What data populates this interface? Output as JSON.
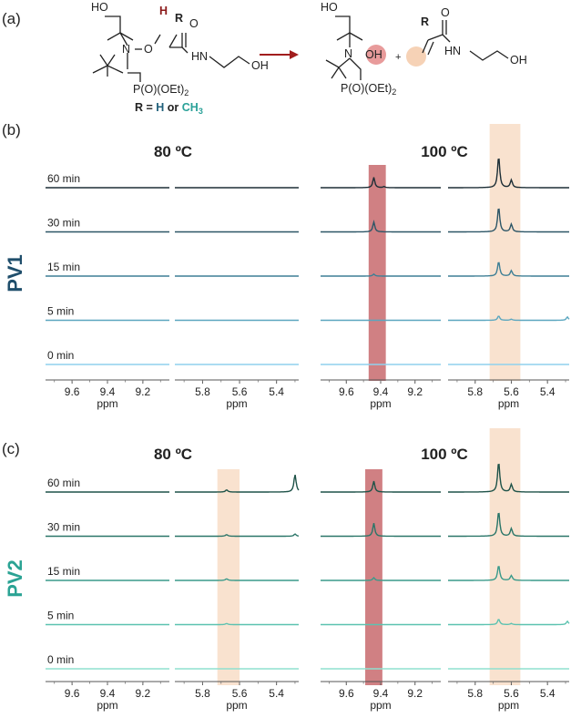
{
  "figure": {
    "panel_a_label": "(a)",
    "panel_b_label": "(b)",
    "panel_c_label": "(c)"
  },
  "scheme": {
    "reactant_labels": [
      "HO",
      "H",
      "R",
      "O",
      "N",
      "O",
      "HN",
      "OH",
      "P(O)(OEt)",
      "2"
    ],
    "r_def_prefix": "R = ",
    "r_def_h": "H",
    "r_def_or": " or ",
    "r_def_ch3": "CH",
    "r_def_ch3_sub": "3",
    "product_labels": [
      "HO",
      "N",
      "OH",
      "P(O)(OEt)",
      "2",
      "+",
      "R",
      "O",
      "HN",
      "OH"
    ],
    "colors": {
      "ink": "#222222",
      "highlight_h": "#8b1a1a",
      "arrow": "#a11d1d",
      "ch3": "#2aa198",
      "h_blue": "#1f5f7a",
      "red_circle": "#e07a7a",
      "peach_circle": "#f6d2b6"
    }
  },
  "chart_data": [
    {
      "type": "line",
      "panel": "(b)",
      "polymer_label": "PV1",
      "polymer_color": "#1f4e6b",
      "x_unit": "ppm",
      "x_ticks_left": [
        "9.6",
        "9.4",
        "9.2"
      ],
      "x_ticks_right": [
        "5.8",
        "5.6",
        "5.4"
      ],
      "xlim_left": [
        9.75,
        9.05
      ],
      "xlim_right": [
        5.95,
        5.28
      ],
      "series": [
        {
          "name": "0 min",
          "color": "#8fd1ee"
        },
        {
          "name": "5 min",
          "color": "#5aa6bf"
        },
        {
          "name": "15 min",
          "color": "#3f7f95"
        },
        {
          "name": "30 min",
          "color": "#2c5566"
        },
        {
          "name": "60 min",
          "color": "#1d2e36"
        }
      ],
      "temperatures": [
        {
          "label": "80 ºC",
          "peaks": [],
          "highlights": []
        },
        {
          "label": "100 ºC",
          "peaks": [
            {
              "ppm": 9.44,
              "heights": [
                0.0,
                0.0,
                0.18,
                0.9,
                0.95
              ]
            },
            {
              "ppm": 9.38,
              "heights": [
                0.0,
                0.0,
                0.0,
                0.0,
                0.1
              ]
            },
            {
              "ppm": 5.67,
              "heights": [
                0.0,
                0.4,
                1.35,
                2.3,
                2.9
              ]
            },
            {
              "ppm": 5.6,
              "heights": [
                0.0,
                0.1,
                0.5,
                0.7,
                0.7
              ]
            },
            {
              "ppm": 5.29,
              "heights": [
                0.0,
                0.3,
                0.0,
                0.0,
                0.0
              ]
            }
          ],
          "highlights": [
            {
              "from": 9.47,
              "to": 9.37,
              "color": "#c0555a"
            },
            {
              "from": 5.72,
              "to": 5.55,
              "color": "#f6d2b6"
            }
          ]
        }
      ]
    },
    {
      "type": "line",
      "panel": "(c)",
      "polymer_label": "PV2",
      "polymer_color": "#2ba394",
      "x_unit": "ppm",
      "x_ticks_left": [
        "9.6",
        "9.4",
        "9.2"
      ],
      "x_ticks_right": [
        "5.8",
        "5.6",
        "5.4"
      ],
      "xlim_left": [
        9.75,
        9.05
      ],
      "xlim_right": [
        5.95,
        5.28
      ],
      "series": [
        {
          "name": "0 min",
          "color": "#8fe0cf"
        },
        {
          "name": "5 min",
          "color": "#5cc2b0"
        },
        {
          "name": "15 min",
          "color": "#3a9a8a"
        },
        {
          "name": "30 min",
          "color": "#2a7568"
        },
        {
          "name": "60 min",
          "color": "#1e5248"
        }
      ],
      "temperatures": [
        {
          "label": "80 ºC",
          "peaks": [
            {
              "ppm": 5.67,
              "heights": [
                0.0,
                0.1,
                0.15,
                0.15,
                0.2
              ]
            },
            {
              "ppm": 5.3,
              "heights": [
                0.0,
                0.0,
                0.0,
                0.2,
                1.6
              ]
            }
          ],
          "highlights": [
            {
              "from": 5.72,
              "to": 5.6,
              "color": "#f6d2b6"
            }
          ]
        },
        {
          "label": "100 ºC",
          "peaks": [
            {
              "ppm": 9.44,
              "heights": [
                0.0,
                0.0,
                0.25,
                1.2,
                1.0
              ]
            },
            {
              "ppm": 5.67,
              "heights": [
                0.0,
                0.5,
                1.4,
                2.3,
                2.8
              ]
            },
            {
              "ppm": 5.6,
              "heights": [
                0.0,
                0.1,
                0.45,
                0.7,
                0.7
              ]
            },
            {
              "ppm": 5.29,
              "heights": [
                0.0,
                0.3,
                0.0,
                0.0,
                0.0
              ]
            }
          ],
          "highlights": [
            {
              "from": 9.49,
              "to": 9.39,
              "color": "#c0555a"
            },
            {
              "from": 5.72,
              "to": 5.55,
              "color": "#f6d2b6"
            }
          ]
        }
      ]
    }
  ]
}
